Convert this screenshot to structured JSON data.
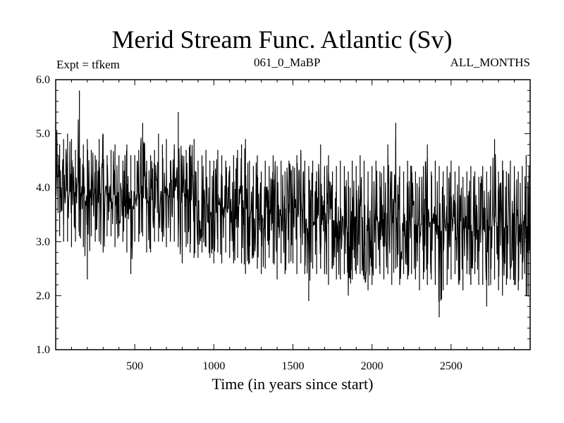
{
  "chart_data": {
    "type": "line",
    "title": "Merid Stream Func. Atlantic (Sv)",
    "annotations": {
      "left": "Expt = tfkem",
      "center": "061_0_MaBP",
      "right": "ALL_MONTHS"
    },
    "xlabel": "Time (in years since start)",
    "ylabel": "",
    "xlim": [
      0,
      3000
    ],
    "ylim": [
      1.0,
      6.0
    ],
    "xticks": [
      500,
      1000,
      1500,
      2000,
      2500
    ],
    "xtick_labels": [
      "500",
      "1000",
      "1500",
      "2000",
      "2500"
    ],
    "yticks": [
      1.0,
      2.0,
      3.0,
      4.0,
      5.0,
      6.0
    ],
    "ytick_labels": [
      "1.0",
      "2.0",
      "3.0",
      "4.0",
      "5.0",
      "6.0"
    ],
    "grid": false,
    "series": [
      {
        "sampling_step_years": 25,
        "x": [
          0,
          25,
          50,
          75,
          100,
          125,
          150,
          175,
          200,
          225,
          250,
          275,
          300,
          325,
          350,
          375,
          400,
          425,
          450,
          475,
          500,
          525,
          550,
          575,
          600,
          625,
          650,
          675,
          700,
          725,
          750,
          775,
          800,
          825,
          850,
          875,
          900,
          925,
          950,
          975,
          1000,
          1025,
          1050,
          1075,
          1100,
          1125,
          1150,
          1175,
          1200,
          1225,
          1250,
          1275,
          1300,
          1325,
          1350,
          1375,
          1400,
          1425,
          1450,
          1475,
          1500,
          1525,
          1550,
          1575,
          1600,
          1625,
          1650,
          1675,
          1700,
          1725,
          1750,
          1775,
          1800,
          1825,
          1850,
          1875,
          1900,
          1925,
          1950,
          1975,
          2000,
          2025,
          2050,
          2075,
          2100,
          2125,
          2150,
          2175,
          2200,
          2225,
          2250,
          2275,
          2300,
          2325,
          2350,
          2375,
          2400,
          2425,
          2450,
          2475,
          2500,
          2525,
          2550,
          2575,
          2600,
          2625,
          2650,
          2675,
          2700,
          2725,
          2750,
          2775,
          2800,
          2825,
          2850,
          2875,
          2900,
          2925,
          2950,
          2975,
          3000
        ],
        "min": [
          3.0,
          3.1,
          3.0,
          3.0,
          2.9,
          3.0,
          3.1,
          2.9,
          2.3,
          3.1,
          3.0,
          3.0,
          2.8,
          3.1,
          3.1,
          2.9,
          3.1,
          3.0,
          2.8,
          2.4,
          3.0,
          3.0,
          3.1,
          2.8,
          2.8,
          3.0,
          3.0,
          3.0,
          2.9,
          3.0,
          3.0,
          2.9,
          2.6,
          2.9,
          2.8,
          2.7,
          2.7,
          2.8,
          2.9,
          2.7,
          2.6,
          2.8,
          2.6,
          2.8,
          2.7,
          2.6,
          2.7,
          2.6,
          2.4,
          2.6,
          2.7,
          2.5,
          2.4,
          2.5,
          2.7,
          2.6,
          2.3,
          2.6,
          2.4,
          2.6,
          2.6,
          2.4,
          2.6,
          2.4,
          1.9,
          2.5,
          2.4,
          2.5,
          2.4,
          2.2,
          2.5,
          2.3,
          2.3,
          2.4,
          2.0,
          2.3,
          2.4,
          2.4,
          2.3,
          2.1,
          2.2,
          2.5,
          2.4,
          2.3,
          2.4,
          2.2,
          2.5,
          2.2,
          2.4,
          2.3,
          2.4,
          2.3,
          2.1,
          2.3,
          2.2,
          2.3,
          2.2,
          1.6,
          2.1,
          2.2,
          2.3,
          2.4,
          2.2,
          2.1,
          2.4,
          2.2,
          2.4,
          2.2,
          2.2,
          1.8,
          2.2,
          2.3,
          2.1,
          2.0,
          2.2,
          2.3,
          2.2,
          2.1,
          2.3,
          2.0,
          1.9
        ],
        "max": [
          5.2,
          4.8,
          4.9,
          5.0,
          4.9,
          4.7,
          5.8,
          4.8,
          4.9,
          4.7,
          4.6,
          4.9,
          5.0,
          4.6,
          4.7,
          4.8,
          4.6,
          4.5,
          4.8,
          4.6,
          4.6,
          4.7,
          5.2,
          4.5,
          4.6,
          4.7,
          5.0,
          4.8,
          4.9,
          4.5,
          4.8,
          5.4,
          4.6,
          4.7,
          4.8,
          4.9,
          4.5,
          4.6,
          4.7,
          4.5,
          4.5,
          4.7,
          4.6,
          4.5,
          4.4,
          4.6,
          4.7,
          4.8,
          4.9,
          4.5,
          4.4,
          4.6,
          4.3,
          4.5,
          4.4,
          4.6,
          4.4,
          4.5,
          4.3,
          4.5,
          4.4,
          4.6,
          4.7,
          4.5,
          4.4,
          4.5,
          4.3,
          4.8,
          4.4,
          4.6,
          4.3,
          4.4,
          4.5,
          4.4,
          4.3,
          4.5,
          4.4,
          4.6,
          4.5,
          4.3,
          4.4,
          4.5,
          4.3,
          4.4,
          4.8,
          4.3,
          5.2,
          4.4,
          4.3,
          4.5,
          4.4,
          4.3,
          4.2,
          4.4,
          4.8,
          4.3,
          4.5,
          4.4,
          4.3,
          4.4,
          4.5,
          4.3,
          4.4,
          4.2,
          4.3,
          4.4,
          4.3,
          4.2,
          4.4,
          4.3,
          4.4,
          4.9,
          4.3,
          4.5,
          4.3,
          4.5,
          4.4,
          4.3,
          4.4,
          4.6,
          4.5
        ]
      }
    ]
  }
}
